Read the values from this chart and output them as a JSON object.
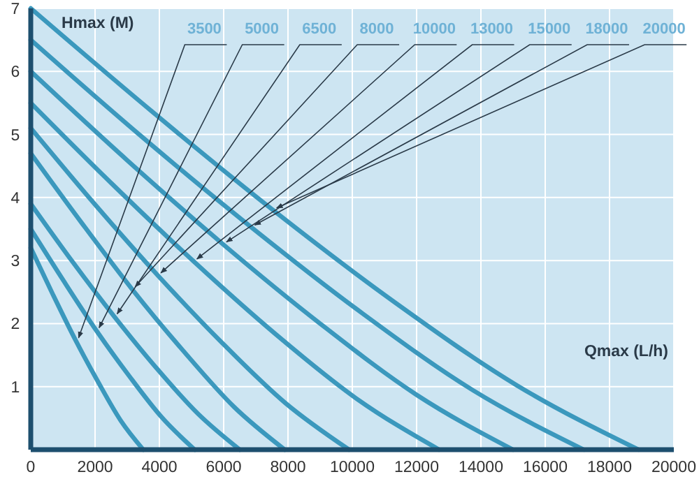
{
  "chart_data": {
    "type": "line",
    "xlabel": "Qmax (L/h)",
    "ylabel": "Hmax (M)",
    "xlim": [
      0,
      20000
    ],
    "ylim": [
      0,
      7
    ],
    "xticks": [
      0,
      2000,
      4000,
      6000,
      8000,
      10000,
      12000,
      14000,
      16000,
      18000,
      20000
    ],
    "yticks": [
      1,
      2,
      3,
      4,
      5,
      6,
      7
    ],
    "grid": true,
    "legend": false,
    "marker": "none",
    "line_style": "solid",
    "series": [
      {
        "name": "3500",
        "color": "#3b98bd",
        "x": [
          0,
          700,
          1400,
          2100,
          2800,
          3500
        ],
        "values": [
          3.2,
          2.45,
          1.73,
          1.07,
          0.46,
          0
        ]
      },
      {
        "name": "5000",
        "color": "#3b98bd",
        "x": [
          0,
          1020,
          2040,
          3060,
          4080,
          5100
        ],
        "values": [
          3.5,
          2.68,
          1.89,
          1.17,
          0.51,
          0
        ]
      },
      {
        "name": "6500",
        "color": "#3b98bd",
        "x": [
          0,
          1300,
          2600,
          3900,
          5200,
          6500
        ],
        "values": [
          3.9,
          2.98,
          2.11,
          1.3,
          0.57,
          0
        ]
      },
      {
        "name": "8000",
        "color": "#3b98bd",
        "x": [
          0,
          1580,
          3160,
          4740,
          6320,
          7900
        ],
        "values": [
          4.7,
          3.6,
          2.54,
          1.57,
          0.68,
          0
        ]
      },
      {
        "name": "10000",
        "color": "#3b98bd",
        "x": [
          0,
          1980,
          3960,
          5940,
          7920,
          9900
        ],
        "values": [
          5.1,
          3.9,
          2.76,
          1.7,
          0.74,
          0
        ]
      },
      {
        "name": "13000",
        "color": "#3b98bd",
        "x": [
          0,
          2540,
          5080,
          7620,
          10160,
          12700
        ],
        "values": [
          5.5,
          4.21,
          2.98,
          1.83,
          0.8,
          0
        ]
      },
      {
        "name": "15000",
        "color": "#3b98bd",
        "x": [
          0,
          3000,
          6000,
          9000,
          12000,
          15000
        ],
        "values": [
          6.0,
          4.59,
          3.25,
          2.0,
          0.87,
          0
        ]
      },
      {
        "name": "18000",
        "color": "#3b98bd",
        "x": [
          0,
          3440,
          6880,
          10320,
          13760,
          17200
        ],
        "values": [
          6.5,
          4.97,
          3.52,
          2.16,
          0.94,
          0
        ]
      },
      {
        "name": "20000",
        "color": "#3b98bd",
        "x": [
          0,
          3780,
          7560,
          11340,
          15120,
          18900
        ],
        "values": [
          7.0,
          5.36,
          3.79,
          2.33,
          1.02,
          0
        ]
      }
    ]
  }
}
